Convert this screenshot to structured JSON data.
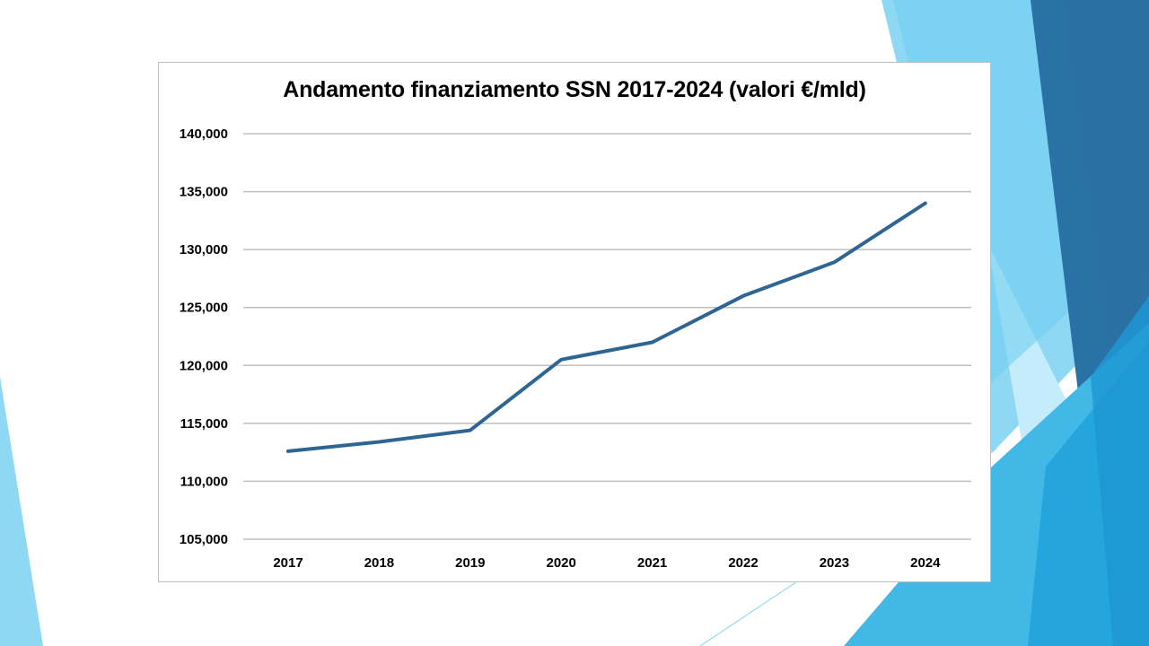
{
  "colors": {
    "line": "#2e6593",
    "grid": "#bfbfbf",
    "deco_light": "#8fd8f3",
    "deco_mid": "#42b8e6",
    "deco_dark": "#2a72a6"
  },
  "chart_data": {
    "type": "line",
    "title": "Andamento finanziamento SSN 2017-2024 (valori €/mld)",
    "xlabel": "",
    "ylabel": "",
    "categories": [
      "2017",
      "2018",
      "2019",
      "2020",
      "2021",
      "2022",
      "2023",
      "2024"
    ],
    "series": [
      {
        "values": [
          112.6,
          113.4,
          114.4,
          120.5,
          122.0,
          126.0,
          128.9,
          134.0
        ]
      }
    ],
    "y_ticks": [
      105,
      110,
      115,
      120,
      125,
      130,
      135,
      140
    ],
    "y_tick_labels": [
      "105,000",
      "110,000",
      "115,000",
      "120,000",
      "125,000",
      "130,000",
      "135,000",
      "140,000"
    ],
    "ylim": [
      105,
      140
    ],
    "grid": true,
    "legend": "none"
  }
}
